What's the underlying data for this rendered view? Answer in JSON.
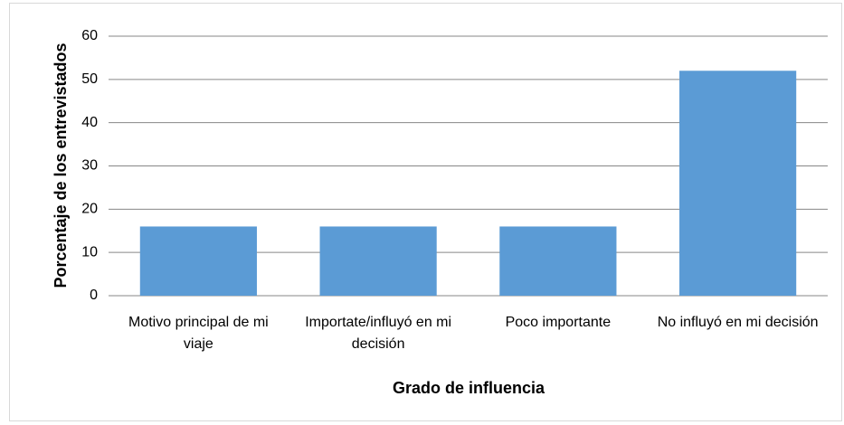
{
  "chart_data": {
    "type": "bar",
    "categories": [
      "Motivo principal de mi viaje",
      "Importate/influyó en mi decisión",
      "Poco importante",
      "No influyó en mi decisión"
    ],
    "values": [
      16,
      16,
      16,
      52
    ],
    "color": "#5b9bd5",
    "x_label": "Grado de influencia",
    "y_label": "Porcentaje de los entrevistados",
    "ylim": [
      0,
      60
    ],
    "yticks": [
      0,
      10,
      20,
      30,
      40,
      50,
      60
    ],
    "grid": true
  }
}
